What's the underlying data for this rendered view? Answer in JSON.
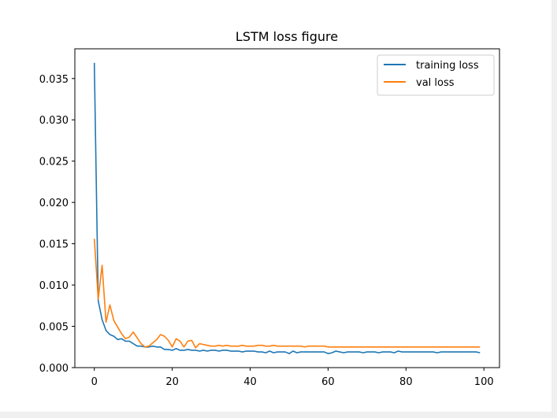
{
  "chart_data": {
    "type": "line",
    "title": "LSTM loss figure",
    "xlabel": "",
    "ylabel": "",
    "xlim": [
      -5,
      104
    ],
    "ylim": [
      0.0,
      0.0386
    ],
    "x_ticks": [
      0,
      20,
      40,
      60,
      80,
      100
    ],
    "x_tick_labels": [
      "0",
      "20",
      "40",
      "60",
      "80",
      "100"
    ],
    "y_ticks": [
      0.0,
      0.005,
      0.01,
      0.015,
      0.02,
      0.025,
      0.03,
      0.035
    ],
    "y_tick_labels": [
      "0.000",
      "0.005",
      "0.010",
      "0.015",
      "0.020",
      "0.025",
      "0.030",
      "0.035"
    ],
    "legend_position": "upper right",
    "grid": false,
    "series": [
      {
        "name": "training loss",
        "color": "#1f77b4",
        "values": [
          0.0369,
          0.0081,
          0.0058,
          0.0045,
          0.004,
          0.0038,
          0.0034,
          0.0035,
          0.0032,
          0.0032,
          0.0029,
          0.0026,
          0.0026,
          0.0025,
          0.0025,
          0.0026,
          0.0025,
          0.0025,
          0.0022,
          0.0022,
          0.0021,
          0.0023,
          0.0021,
          0.0021,
          0.0022,
          0.0021,
          0.0021,
          0.002,
          0.0021,
          0.002,
          0.0021,
          0.0021,
          0.002,
          0.0021,
          0.0021,
          0.002,
          0.002,
          0.002,
          0.0019,
          0.002,
          0.002,
          0.002,
          0.0019,
          0.0019,
          0.0018,
          0.002,
          0.0018,
          0.0019,
          0.0019,
          0.0019,
          0.0017,
          0.002,
          0.0018,
          0.0019,
          0.0019,
          0.0019,
          0.0019,
          0.0019,
          0.0019,
          0.0019,
          0.0017,
          0.0018,
          0.002,
          0.0019,
          0.0018,
          0.0019,
          0.0019,
          0.0019,
          0.0019,
          0.0018,
          0.0019,
          0.0019,
          0.0019,
          0.0018,
          0.0019,
          0.0019,
          0.0019,
          0.0018,
          0.002,
          0.0019,
          0.0019,
          0.0019,
          0.0019,
          0.0019,
          0.0019,
          0.0019,
          0.0019,
          0.0019,
          0.0018,
          0.0019,
          0.0019,
          0.0019,
          0.0019,
          0.0019,
          0.0019,
          0.0019,
          0.0019,
          0.0019,
          0.0019,
          0.0018
        ]
      },
      {
        "name": "val loss",
        "color": "#ff7f0e",
        "values": [
          0.0156,
          0.0083,
          0.0124,
          0.0055,
          0.0076,
          0.0057,
          0.0049,
          0.0041,
          0.0035,
          0.0037,
          0.0043,
          0.0036,
          0.0029,
          0.0025,
          0.0026,
          0.003,
          0.0034,
          0.004,
          0.0038,
          0.0033,
          0.0025,
          0.0035,
          0.0032,
          0.0025,
          0.0032,
          0.0033,
          0.0024,
          0.0029,
          0.0028,
          0.0027,
          0.0026,
          0.0026,
          0.0027,
          0.0026,
          0.0027,
          0.0026,
          0.0026,
          0.0026,
          0.0027,
          0.0026,
          0.0026,
          0.0026,
          0.0027,
          0.0027,
          0.0026,
          0.0026,
          0.0027,
          0.0026,
          0.0026,
          0.0026,
          0.0026,
          0.0026,
          0.0026,
          0.0026,
          0.0025,
          0.0026,
          0.0026,
          0.0026,
          0.0026,
          0.0026,
          0.0025,
          0.0025,
          0.0025,
          0.0025,
          0.0025,
          0.0025,
          0.0025,
          0.0025,
          0.0025,
          0.0025,
          0.0025,
          0.0025,
          0.0025,
          0.0025,
          0.0025,
          0.0025,
          0.0025,
          0.0025,
          0.0025,
          0.0025,
          0.0025,
          0.0025,
          0.0025,
          0.0025,
          0.0025,
          0.0025,
          0.0025,
          0.0025,
          0.0025,
          0.0025,
          0.0025,
          0.0025,
          0.0025,
          0.0025,
          0.0025,
          0.0025,
          0.0025,
          0.0025,
          0.0025,
          0.0025
        ]
      }
    ]
  }
}
